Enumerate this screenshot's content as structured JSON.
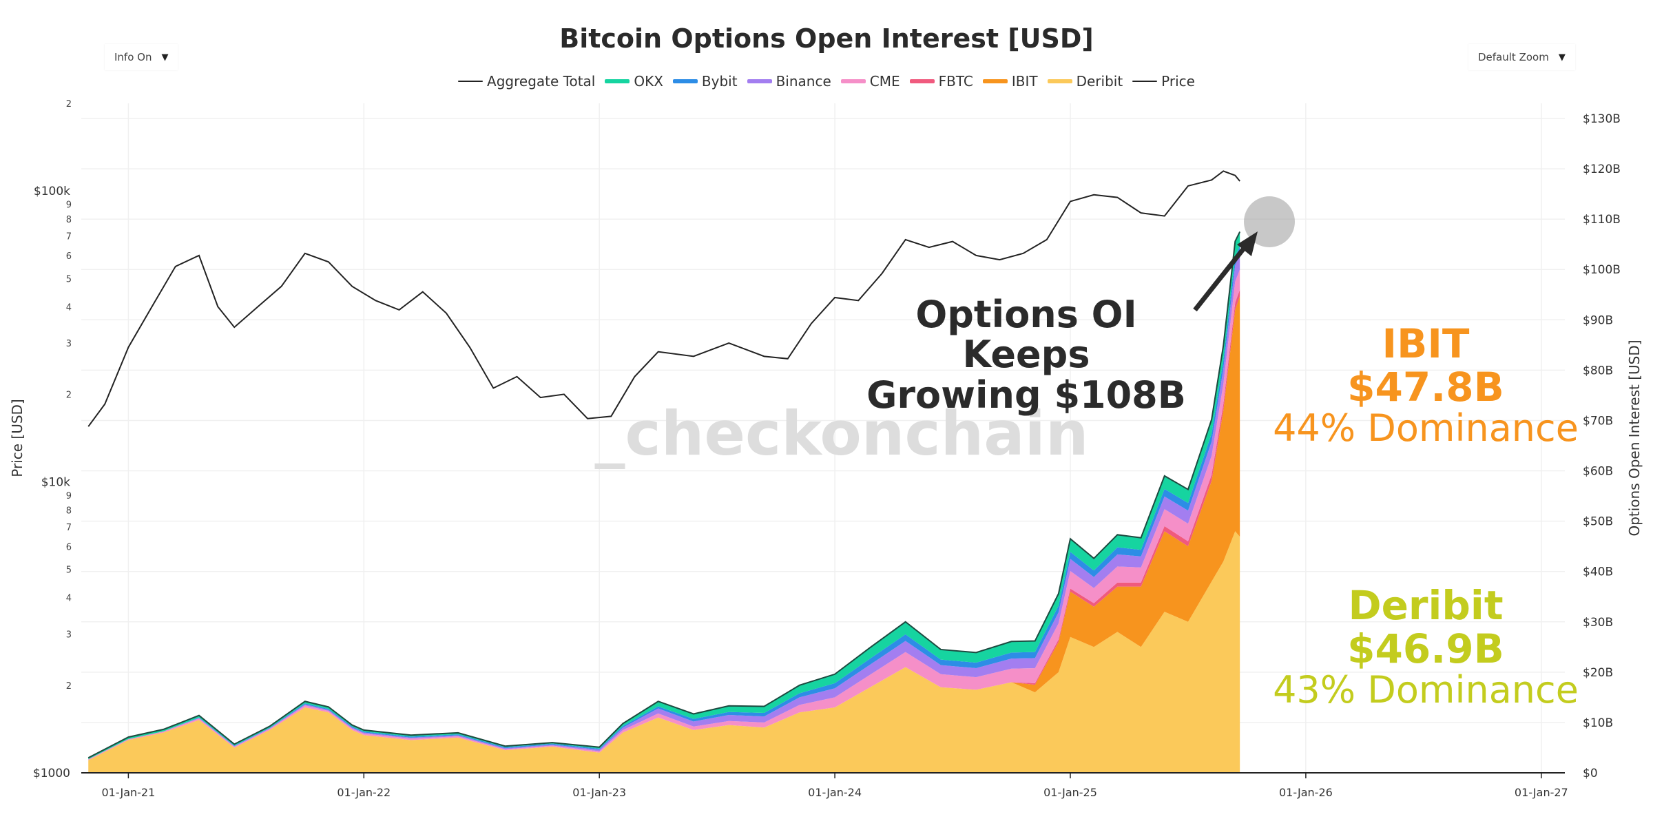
{
  "title": "Bitcoin Options Open Interest [USD]",
  "controls": {
    "info_label": "Info On",
    "zoom_label": "Default Zoom"
  },
  "legend": [
    {
      "name": "Aggregate Total",
      "color": "#222222",
      "kind": "line"
    },
    {
      "name": "OKX",
      "color": "#16d4a0",
      "kind": "area"
    },
    {
      "name": "Bybit",
      "color": "#2d8de6",
      "kind": "area"
    },
    {
      "name": "Binance",
      "color": "#a37ef0",
      "kind": "area"
    },
    {
      "name": "CME",
      "color": "#f58fc8",
      "kind": "area"
    },
    {
      "name": "FBTC",
      "color": "#f05a7e",
      "kind": "area"
    },
    {
      "name": "IBIT",
      "color": "#f7941e",
      "kind": "area"
    },
    {
      "name": "Deribit",
      "color": "#fbc95a",
      "kind": "area"
    },
    {
      "name": "Price",
      "color": "#222222",
      "kind": "line"
    }
  ],
  "watermark": "_checkonchain",
  "annotations": {
    "headline_line1": "Options OI Keeps",
    "headline_line2": "Growing $108B",
    "ibit_name": "IBIT",
    "ibit_value": "$47.8B",
    "ibit_dominance": "44% Dominance",
    "deribit_name": "Deribit",
    "deribit_value": "$46.9B",
    "deribit_dominance": "43% Dominance"
  },
  "colors": {
    "ibit_accent": "#f7941e",
    "deribit_accent": "#c3cc1e",
    "headline": "#2b2b2b"
  },
  "chart_data": {
    "type": "area",
    "title": "Bitcoin Options Open Interest [USD]",
    "ylabel_left": "Price [USD]",
    "ylabel_right": "Options Open Interest [USD]",
    "x_ticks": [
      "01-Jan-21",
      "01-Jan-22",
      "01-Jan-23",
      "01-Jan-24",
      "01-Jan-25",
      "01-Jan-26",
      "01-Jan-27"
    ],
    "x_range_years": [
      2020.8,
      2027.1
    ],
    "y_right_range_billions": [
      0,
      130
    ],
    "y_right_ticks": [
      "$0",
      "$10B",
      "$20B",
      "$30B",
      "$40B",
      "$50B",
      "$60B",
      "$70B",
      "$80B",
      "$90B",
      "$100B",
      "$110B",
      "$120B",
      "$130B"
    ],
    "y_left_range_usd": [
      1000,
      200000
    ],
    "y_left_scale": "log",
    "y_left_major_ticks": [
      {
        "value": 1000,
        "label": "$1000"
      },
      {
        "value": 10000,
        "label": "$10k"
      },
      {
        "value": 100000,
        "label": "$100k"
      }
    ],
    "y_left_minor_ticks": [
      {
        "value": 2000,
        "label": "2"
      },
      {
        "value": 3000,
        "label": "3"
      },
      {
        "value": 4000,
        "label": "4"
      },
      {
        "value": 5000,
        "label": "5"
      },
      {
        "value": 6000,
        "label": "6"
      },
      {
        "value": 7000,
        "label": "7"
      },
      {
        "value": 8000,
        "label": "8"
      },
      {
        "value": 9000,
        "label": "9"
      },
      {
        "value": 20000,
        "label": "2"
      },
      {
        "value": 30000,
        "label": "3"
      },
      {
        "value": 40000,
        "label": "4"
      },
      {
        "value": 50000,
        "label": "5"
      },
      {
        "value": 60000,
        "label": "6"
      },
      {
        "value": 70000,
        "label": "7"
      },
      {
        "value": 80000,
        "label": "8"
      },
      {
        "value": 90000,
        "label": "9"
      },
      {
        "value": 200000,
        "label": "2"
      }
    ],
    "stack_order": [
      "Deribit",
      "IBIT",
      "FBTC",
      "CME",
      "Binance",
      "Bybit",
      "OKX"
    ],
    "oi_x": [
      2020.83,
      2021.0,
      2021.15,
      2021.3,
      2021.45,
      2021.6,
      2021.75,
      2021.85,
      2021.95,
      2022.0,
      2022.2,
      2022.4,
      2022.6,
      2022.8,
      2023.0,
      2023.1,
      2023.25,
      2023.4,
      2023.55,
      2023.7,
      2023.85,
      2024.0,
      2024.15,
      2024.3,
      2024.45,
      2024.6,
      2024.75,
      2024.85,
      2024.95,
      2025.0,
      2025.1,
      2025.2,
      2025.3,
      2025.4,
      2025.5,
      2025.6,
      2025.65,
      2025.7,
      2025.72
    ],
    "series": [
      {
        "name": "Deribit",
        "values": [
          2.5,
          6.5,
          8.0,
          10.5,
          5.0,
          8.5,
          13.0,
          12.0,
          8.5,
          7.5,
          6.5,
          7.0,
          4.5,
          5.2,
          4.0,
          8.0,
          11.0,
          8.5,
          9.5,
          9.0,
          12.0,
          13.0,
          17.0,
          21.0,
          17.0,
          16.5,
          18.0,
          16.0,
          20.0,
          27.0,
          25.0,
          28.0,
          25.0,
          32.0,
          30.0,
          38.0,
          42.0,
          48.0,
          46.9
        ]
      },
      {
        "name": "IBIT",
        "values": [
          0,
          0,
          0,
          0,
          0,
          0,
          0,
          0,
          0,
          0,
          0,
          0,
          0,
          0,
          0,
          0,
          0,
          0,
          0,
          0,
          0,
          0,
          0,
          0,
          0,
          0,
          0,
          1.5,
          6.0,
          9.0,
          8.0,
          9.0,
          12.0,
          16.0,
          15.0,
          20.0,
          30.0,
          44.0,
          47.8
        ]
      },
      {
        "name": "FBTC",
        "values": [
          0,
          0,
          0,
          0,
          0,
          0,
          0,
          0,
          0,
          0,
          0,
          0,
          0,
          0,
          0,
          0,
          0,
          0,
          0,
          0,
          0,
          0,
          0,
          0,
          0,
          0,
          0,
          0.3,
          0.5,
          0.6,
          0.7,
          0.8,
          0.8,
          1.0,
          1.0,
          1.2,
          1.3,
          1.4,
          1.3
        ]
      },
      {
        "name": "CME",
        "values": [
          0.2,
          0.2,
          0.25,
          0.3,
          0.2,
          0.25,
          0.4,
          0.3,
          0.3,
          0.3,
          0.3,
          0.25,
          0.2,
          0.2,
          0.3,
          0.5,
          0.8,
          0.7,
          0.8,
          1.0,
          1.5,
          2.0,
          2.5,
          3.0,
          2.6,
          2.5,
          2.7,
          3.0,
          3.2,
          3.5,
          3.0,
          3.2,
          3.0,
          3.4,
          3.5,
          3.8,
          4.0,
          4.2,
          4.0
        ]
      },
      {
        "name": "Binance",
        "values": [
          0,
          0,
          0,
          0.1,
          0.1,
          0.1,
          0.2,
          0.2,
          0.2,
          0.2,
          0.2,
          0.2,
          0.2,
          0.2,
          0.3,
          0.5,
          1.0,
          1.0,
          1.2,
          1.2,
          1.5,
          1.8,
          2.0,
          2.2,
          1.8,
          1.8,
          2.0,
          2.0,
          2.2,
          2.4,
          2.2,
          2.4,
          2.2,
          2.5,
          2.6,
          2.8,
          3.0,
          3.2,
          3.0
        ]
      },
      {
        "name": "Bybit",
        "values": [
          0,
          0,
          0,
          0.1,
          0.1,
          0.1,
          0.2,
          0.2,
          0.2,
          0.2,
          0.2,
          0.2,
          0.2,
          0.2,
          0.2,
          0.3,
          0.4,
          0.5,
          0.6,
          0.7,
          0.8,
          1.0,
          1.2,
          1.3,
          1.1,
          1.1,
          1.2,
          1.2,
          1.3,
          1.4,
          1.3,
          1.4,
          1.3,
          1.5,
          1.5,
          1.6,
          1.7,
          1.8,
          1.7
        ]
      },
      {
        "name": "OKX",
        "values": [
          0.3,
          0.4,
          0.4,
          0.4,
          0.3,
          0.3,
          0.4,
          0.4,
          0.3,
          0.3,
          0.3,
          0.3,
          0.2,
          0.2,
          0.3,
          0.5,
          1.0,
          1.0,
          1.2,
          1.3,
          1.6,
          1.8,
          2.2,
          2.5,
          2.0,
          2.0,
          2.2,
          2.2,
          2.4,
          2.6,
          2.4,
          2.5,
          2.4,
          2.6,
          2.7,
          2.8,
          2.9,
          3.0,
          2.8
        ]
      }
    ],
    "price": {
      "x": [
        2020.83,
        2020.9,
        2021.0,
        2021.1,
        2021.2,
        2021.3,
        2021.38,
        2021.45,
        2021.55,
        2021.65,
        2021.75,
        2021.85,
        2021.95,
        2022.05,
        2022.15,
        2022.25,
        2022.35,
        2022.45,
        2022.55,
        2022.65,
        2022.75,
        2022.85,
        2022.95,
        2023.05,
        2023.15,
        2023.25,
        2023.4,
        2023.55,
        2023.7,
        2023.8,
        2023.9,
        2024.0,
        2024.1,
        2024.2,
        2024.3,
        2024.4,
        2024.5,
        2024.6,
        2024.7,
        2024.8,
        2024.9,
        2025.0,
        2025.1,
        2025.2,
        2025.3,
        2025.4,
        2025.5,
        2025.6,
        2025.65,
        2025.7,
        2025.72
      ],
      "values": [
        15500,
        18500,
        29000,
        40000,
        55000,
        60000,
        40000,
        34000,
        40000,
        47000,
        61000,
        57000,
        47000,
        42000,
        39000,
        45000,
        38000,
        29000,
        21000,
        23000,
        19500,
        20000,
        16500,
        16800,
        23000,
        28000,
        27000,
        30000,
        27000,
        26500,
        35000,
        43000,
        42000,
        52000,
        68000,
        64000,
        67000,
        60000,
        58000,
        61000,
        68000,
        92000,
        97000,
        95000,
        84000,
        82000,
        104000,
        109000,
        117000,
        113000,
        108000
      ]
    }
  }
}
